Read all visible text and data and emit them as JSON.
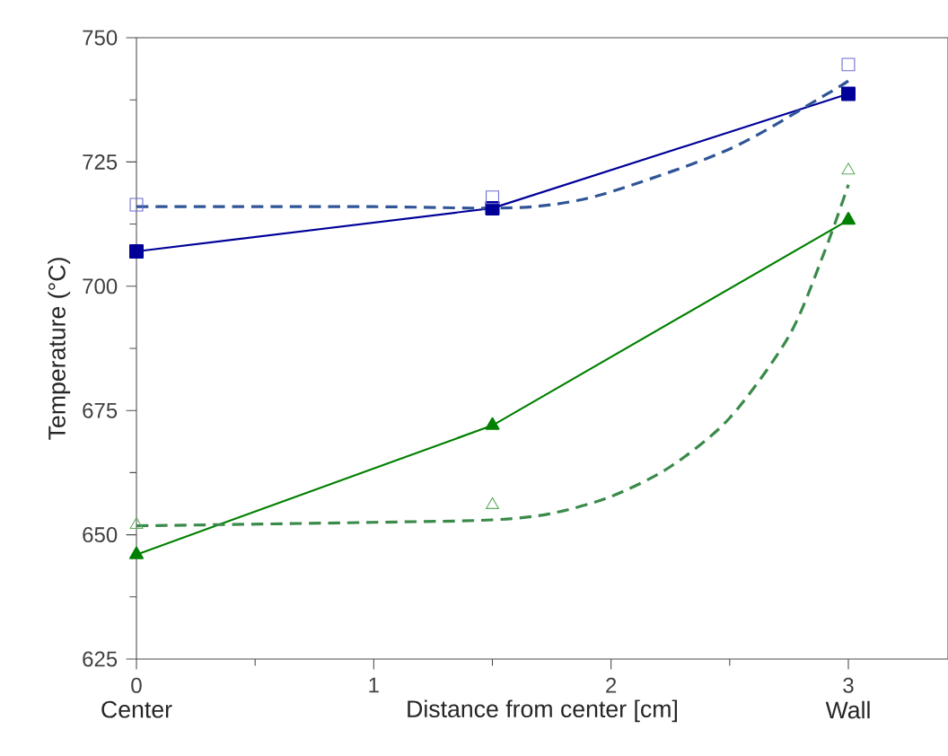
{
  "chart_data": {
    "type": "line",
    "xlabel": "Distance from center [cm]",
    "ylabel": "Temperature (°C)",
    "xlim": [
      0,
      3.42
    ],
    "ylim": [
      625,
      750
    ],
    "xticks": [
      0,
      1,
      2,
      3
    ],
    "yticks": [
      625,
      650,
      675,
      700,
      725,
      750
    ],
    "grid": false,
    "legend": false,
    "annotations": [
      "Center",
      "Wall"
    ],
    "series": [
      {
        "color": "#000099",
        "x": [
          0,
          1.5,
          3
        ],
        "values": [
          707,
          715.7,
          738.7
        ],
        "marker": "square",
        "line_style": "solid"
      },
      {
        "type": "scatter",
        "color": "#6a6ad0",
        "x": [
          0,
          1.5,
          3
        ],
        "values": [
          716.4,
          717.9,
          744.6
        ],
        "marker": "square"
      },
      {
        "color": "#2f5597",
        "x": [
          0,
          1,
          1.5,
          1.75,
          2,
          2.5,
          2.9,
          3
        ],
        "values": [
          716,
          716,
          715.7,
          716.4,
          719,
          727.6,
          738.4,
          741.3
        ],
        "marker": "none",
        "line_style": "dashed"
      },
      {
        "color": "#008000",
        "x": [
          0,
          1.5,
          3
        ],
        "values": [
          646,
          672,
          713.3
        ],
        "marker": "triangle",
        "line_style": "solid"
      },
      {
        "type": "scatter",
        "color": "#5fae5f",
        "x": [
          0,
          1.5,
          3
        ],
        "values": [
          652,
          656,
          723.3
        ],
        "marker": "triangle"
      },
      {
        "color": "#3a8a4a",
        "x": [
          0,
          1,
          1.5,
          1.75,
          2,
          2.25,
          2.5,
          2.75,
          2.9,
          3
        ],
        "values": [
          651.8,
          652.5,
          653,
          654.3,
          657.7,
          663.7,
          673.5,
          690,
          707,
          720.4
        ],
        "marker": "none",
        "line_style": "dashed"
      }
    ]
  }
}
